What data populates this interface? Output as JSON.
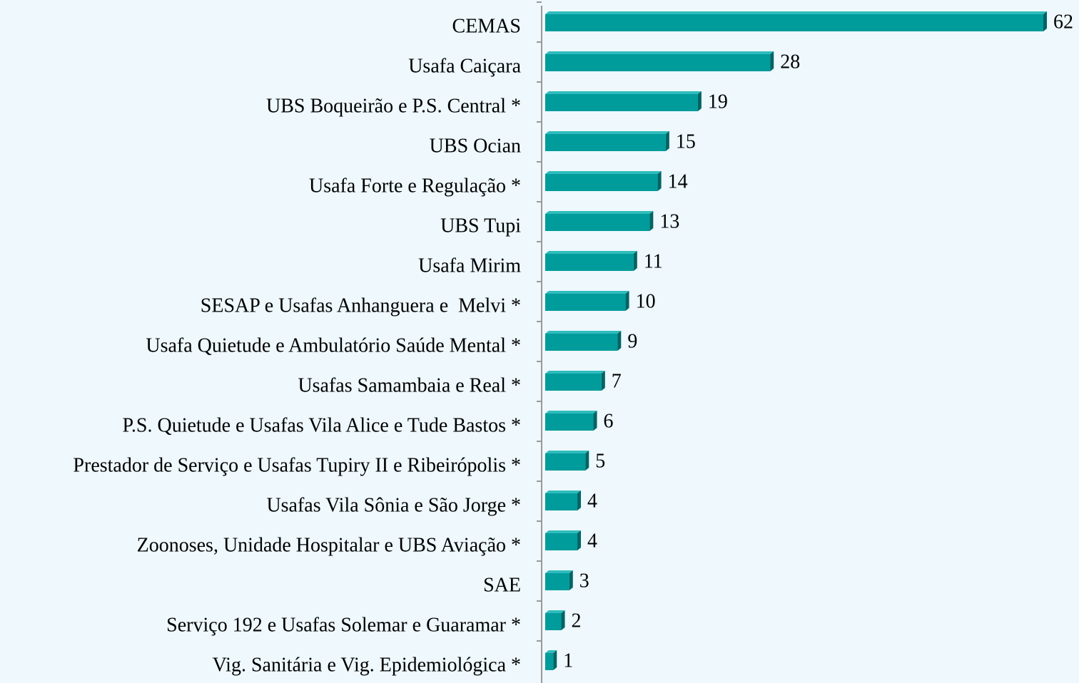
{
  "chart_data": {
    "type": "barh",
    "categories": [
      "CEMAS",
      "Usafa Caiçara",
      "UBS Boqueirão e P.S. Central *",
      "UBS Ocian",
      "Usafa Forte e Regulação *",
      "UBS Tupi",
      "Usafa Mirim",
      "SESAP e Usafas Anhanguera e  Melvi *",
      "Usafa Quietude e Ambulatório Saúde Mental *",
      "Usafas Samambaia e Real *",
      "P.S. Quietude e Usafas Vila Alice e Tude Bastos *",
      "Prestador de Serviço e Usafas Tupiry II e Ribeirópolis *",
      "Usafas Vila Sônia e São Jorge *",
      "Zoonoses, Unidade Hospitalar e UBS Aviação *",
      "SAE",
      "Serviço 192 e Usafas Solemar e Guaramar *",
      "Vig. Sanitária e Vig. Epidemiológica *"
    ],
    "values": [
      62,
      28,
      19,
      15,
      14,
      13,
      11,
      10,
      9,
      7,
      6,
      5,
      4,
      4,
      3,
      2,
      1
    ],
    "color": "#009b9b"
  }
}
